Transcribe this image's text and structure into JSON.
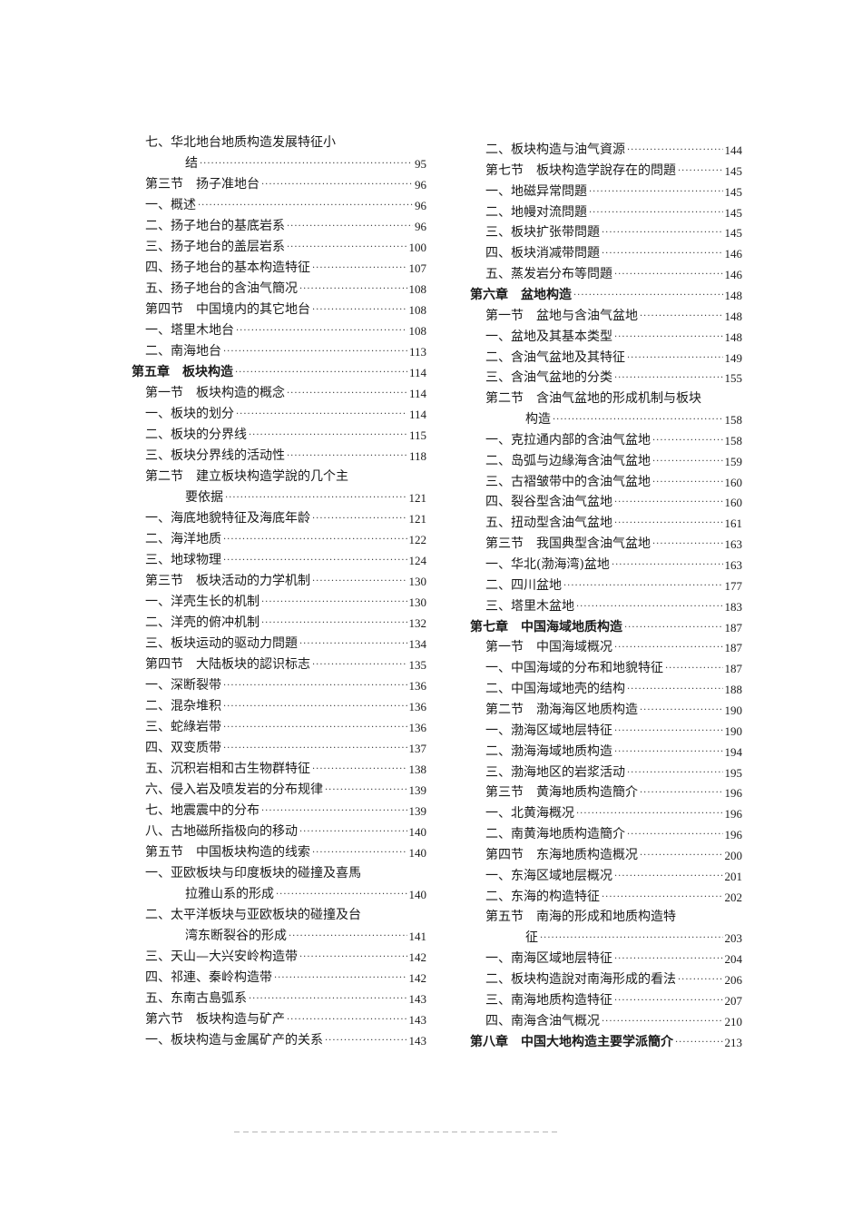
{
  "columns": [
    {
      "entries": [
        {
          "level": "item",
          "text": "七、华北地台地质构造发展特征小",
          "cont": "结",
          "page": "95"
        },
        {
          "level": "section",
          "text": "第三节　扬子准地台",
          "page": "96"
        },
        {
          "level": "item",
          "text": "一、概述",
          "page": "96"
        },
        {
          "level": "item",
          "text": "二、扬子地台的基底岩系",
          "page": "96"
        },
        {
          "level": "item",
          "text": "三、扬子地台的盖层岩系",
          "page": "100"
        },
        {
          "level": "item",
          "text": "四、扬子地台的基本构造特征",
          "page": "107"
        },
        {
          "level": "item",
          "text": "五、扬子地台的含油气簡况",
          "page": "108"
        },
        {
          "level": "section",
          "text": "第四节　中国境内的其它地台",
          "page": "108"
        },
        {
          "level": "item",
          "text": "一、塔里木地台",
          "page": "108"
        },
        {
          "level": "item",
          "text": "二、南海地台",
          "page": "113"
        },
        {
          "level": "chapter",
          "text": "第五章　板块构造",
          "page": "114"
        },
        {
          "level": "section",
          "text": "第一节　板块构造的概念",
          "page": "114"
        },
        {
          "level": "item",
          "text": "一、板块的划分",
          "page": "114"
        },
        {
          "level": "item",
          "text": "二、板块的分界线",
          "page": "115"
        },
        {
          "level": "item",
          "text": "三、板块分界线的活动性",
          "page": "118"
        },
        {
          "level": "section",
          "text": "第二节　建立板块构造学說的几个主",
          "cont": "要依据",
          "page": "121"
        },
        {
          "level": "item",
          "text": "一、海底地貌特征及海底年龄",
          "page": "121"
        },
        {
          "level": "item",
          "text": "二、海洋地质",
          "page": "122"
        },
        {
          "level": "item",
          "text": "三、地球物理",
          "page": "124"
        },
        {
          "level": "section",
          "text": "第三节　板块活动的力学机制",
          "page": "130"
        },
        {
          "level": "item",
          "text": "一、洋壳生长的机制",
          "page": "130"
        },
        {
          "level": "item",
          "text": "二、洋壳的俯冲机制",
          "page": "132"
        },
        {
          "level": "item",
          "text": "三、板块运动的驱动力問題",
          "page": "134"
        },
        {
          "level": "section",
          "text": "第四节　大陆板块的認识标志",
          "page": "135"
        },
        {
          "level": "item",
          "text": "一、深断裂带",
          "page": "136"
        },
        {
          "level": "item",
          "text": "二、混杂堆积",
          "page": "136"
        },
        {
          "level": "item",
          "text": "三、蛇綠岩带",
          "page": "136"
        },
        {
          "level": "item",
          "text": "四、双变质带",
          "page": "137"
        },
        {
          "level": "item",
          "text": "五、沉积岩相和古生物群特征",
          "page": "138"
        },
        {
          "level": "item",
          "text": "六、侵入岩及喷发岩的分布规律",
          "page": "139"
        },
        {
          "level": "item",
          "text": "七、地震震中的分布",
          "page": "139"
        },
        {
          "level": "item",
          "text": "八、古地磁所指极向的移动",
          "page": "140"
        },
        {
          "level": "section",
          "text": "第五节　中国板块构造的线索",
          "page": "140"
        },
        {
          "level": "item",
          "text": "一、亚欧板块与印度板块的碰撞及喜馬",
          "cont": "拉雅山系的形成",
          "page": "140"
        },
        {
          "level": "item",
          "text": "二、太平洋板块与亚欧板块的碰撞及台",
          "cont": "湾东断裂谷的形成",
          "page": "141"
        },
        {
          "level": "item",
          "text": "三、天山—大兴安岭构造带",
          "page": "142"
        },
        {
          "level": "item",
          "text": "四、祁連、秦岭构造带",
          "page": "142"
        },
        {
          "level": "item",
          "text": "五、东南古島弧系",
          "page": "143"
        },
        {
          "level": "section",
          "text": "第六节　板块构造与矿产",
          "page": "143"
        },
        {
          "level": "item",
          "text": "一、板块构造与金属矿产的关系",
          "page": "143"
        }
      ]
    },
    {
      "entries": [
        {
          "level": "item",
          "text": "二、板块构造与油气資源",
          "page": "144"
        },
        {
          "level": "section",
          "text": "第七节　板块构造学說存在的問題",
          "page": "145"
        },
        {
          "level": "item",
          "text": "一、地磁异常問題",
          "page": "145"
        },
        {
          "level": "item",
          "text": "二、地幔对流問題",
          "page": "145"
        },
        {
          "level": "item",
          "text": "三、板块扩张带問題",
          "page": "145"
        },
        {
          "level": "item",
          "text": "四、板块消减带問題",
          "page": "146"
        },
        {
          "level": "item",
          "text": "五、蒸发岩分布等問題",
          "page": "146"
        },
        {
          "level": "chapter",
          "text": "第六章　盆地构造",
          "page": "148"
        },
        {
          "level": "section",
          "text": "第一节　盆地与含油气盆地",
          "page": "148"
        },
        {
          "level": "item",
          "text": "一、盆地及其基本类型",
          "page": "148"
        },
        {
          "level": "item",
          "text": "二、含油气盆地及其特征",
          "page": "149"
        },
        {
          "level": "item",
          "text": "三、含油气盆地的分类",
          "page": "155"
        },
        {
          "level": "section",
          "text": "第二节　含油气盆地的形成机制与板块",
          "cont": "构造",
          "page": "158"
        },
        {
          "level": "item",
          "text": "一、克拉通内部的含油气盆地",
          "page": "158"
        },
        {
          "level": "item",
          "text": "二、岛弧与边緣海含油气盆地",
          "page": "159"
        },
        {
          "level": "item",
          "text": "三、古褶皱带中的含油气盆地",
          "page": "160"
        },
        {
          "level": "item",
          "text": "四、裂谷型含油气盆地",
          "page": "160"
        },
        {
          "level": "item",
          "text": "五、扭动型含油气盆地",
          "page": "161"
        },
        {
          "level": "section",
          "text": "第三节　我国典型含油气盆地",
          "page": "163"
        },
        {
          "level": "item",
          "text": "一、华北(渤海湾)盆地",
          "page": "163"
        },
        {
          "level": "item",
          "text": "二、四川盆地",
          "page": "177"
        },
        {
          "level": "item",
          "text": "三、塔里木盆地",
          "page": "183"
        },
        {
          "level": "chapter",
          "text": "第七章　中国海域地质构造",
          "page": "187"
        },
        {
          "level": "section",
          "text": "第一节　中国海域概况",
          "page": "187"
        },
        {
          "level": "item",
          "text": "一、中国海域的分布和地貌特征",
          "page": "187"
        },
        {
          "level": "item",
          "text": "二、中国海域地壳的结构",
          "page": "188"
        },
        {
          "level": "section",
          "text": "第二节　渤海海区地质构造",
          "page": "190"
        },
        {
          "level": "item",
          "text": "一、渤海区域地层特征",
          "page": "190"
        },
        {
          "level": "item",
          "text": "二、渤海海域地质构造",
          "page": "194"
        },
        {
          "level": "item",
          "text": "三、渤海地区的岩浆活动",
          "page": "195"
        },
        {
          "level": "section",
          "text": "第三节　黄海地质构造簡介",
          "page": "196"
        },
        {
          "level": "item",
          "text": "一、北黄海概况",
          "page": "196"
        },
        {
          "level": "item",
          "text": "二、南黄海地质构造簡介",
          "page": "196"
        },
        {
          "level": "section",
          "text": "第四节　东海地质构造概况",
          "page": "200"
        },
        {
          "level": "item",
          "text": "一、东海区域地层概况",
          "page": "201"
        },
        {
          "level": "item",
          "text": "二、东海的构造特征",
          "page": "202"
        },
        {
          "level": "section",
          "text": "第五节　南海的形成和地质构造特",
          "cont": "征",
          "page": "203"
        },
        {
          "level": "item",
          "text": "一、南海区域地层特征",
          "page": "204"
        },
        {
          "level": "item",
          "text": "二、板块构造說对南海形成的看法",
          "page": "206"
        },
        {
          "level": "item",
          "text": "三、南海地质构造特征",
          "page": "207"
        },
        {
          "level": "item",
          "text": "四、南海含油气概况",
          "page": "210"
        },
        {
          "level": "chapter",
          "text": "第八章　中国大地构造主要学派簡介",
          "page": "213"
        }
      ]
    }
  ]
}
